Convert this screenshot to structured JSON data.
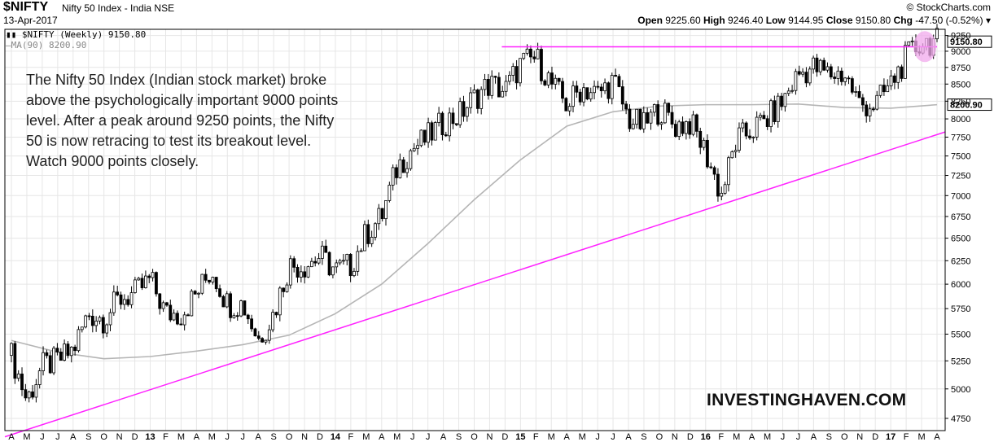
{
  "header": {
    "symbol": "$NIFTY",
    "name": "Nifty 50 Index - India",
    "exchange": "NSE",
    "date": "13-Apr-2017",
    "credit": "© StockCharts.com",
    "open_label": "Open",
    "open": "9225.60",
    "high_label": "High",
    "high": "9246.40",
    "low_label": "Low",
    "low": "9144.95",
    "close_label": "Close",
    "close": "9150.80",
    "chg_label": "Chg",
    "chg": "-47.50 (-0.52%)"
  },
  "legend": {
    "main": "$NIFTY (Weekly) 9150.80",
    "ma": "MA(90) 8200.90"
  },
  "annotation": "The Nifty 50 Index (Indian stock market) broke above the psychologically important 9000 points level. After a peak around 9250 points, the Nifty 50 is now retracing to test its breakout level. Watch 9000 points closely.",
  "watermark": "INVESTINGHAVEN.COM",
  "colors": {
    "price": "#000000",
    "ma": "#b5b5b5",
    "trendline": "#ff22ff",
    "grid": "#e6e6e6",
    "highlight": "#f2a9ec"
  },
  "chart_data": {
    "type": "line",
    "title": "$NIFTY Nifty 50 Index - India NSE",
    "price_style": "weekly candlesticks",
    "ylim": [
      4650,
      9350
    ],
    "y_ticks": [
      4750,
      5000,
      5250,
      5500,
      5750,
      6000,
      6250,
      6500,
      6750,
      7000,
      7250,
      7500,
      7750,
      8000,
      8250,
      8500,
      8750,
      9000,
      9250
    ],
    "y_scale": "log",
    "grid": true,
    "x_tick_labels": [
      "A",
      "M",
      "J",
      "J",
      "A",
      "S",
      "O",
      "N",
      "D",
      "13",
      "F",
      "M",
      "A",
      "M",
      "J",
      "J",
      "A",
      "S",
      "O",
      "N",
      "D",
      "14",
      "F",
      "M",
      "A",
      "M",
      "J",
      "J",
      "A",
      "S",
      "O",
      "N",
      "D",
      "15",
      "F",
      "M",
      "A",
      "M",
      "J",
      "J",
      "A",
      "S",
      "O",
      "N",
      "D",
      "16",
      "F",
      "M",
      "A",
      "M",
      "J",
      "J",
      "A",
      "S",
      "O",
      "N",
      "D",
      "17",
      "F",
      "M",
      "A"
    ],
    "x_range": [
      "2012-04",
      "2017-04"
    ],
    "series": [
      {
        "name": "$NIFTY (Weekly)",
        "x": [
          "2012-04",
          "2012-05",
          "2012-06",
          "2012-07",
          "2012-08",
          "2012-09",
          "2012-10",
          "2012-11",
          "2012-12",
          "2013-01",
          "2013-02",
          "2013-03",
          "2013-04",
          "2013-05",
          "2013-06",
          "2013-07",
          "2013-08",
          "2013-09",
          "2013-10",
          "2013-11",
          "2013-12",
          "2014-01",
          "2014-02",
          "2014-03",
          "2014-04",
          "2014-05",
          "2014-06",
          "2014-07",
          "2014-08",
          "2014-09",
          "2014-10",
          "2014-11",
          "2014-12",
          "2015-01",
          "2015-02",
          "2015-03",
          "2015-04",
          "2015-05",
          "2015-06",
          "2015-07",
          "2015-08",
          "2015-09",
          "2015-10",
          "2015-11",
          "2015-12",
          "2016-01",
          "2016-02",
          "2016-03",
          "2016-04",
          "2016-05",
          "2016-06",
          "2016-07",
          "2016-08",
          "2016-09",
          "2016-10",
          "2016-11",
          "2016-12",
          "2017-01",
          "2017-02",
          "2017-03",
          "2017-04"
        ],
        "values": [
          5300,
          4900,
          5200,
          5250,
          5350,
          5700,
          5650,
          5850,
          5900,
          6050,
          5700,
          5700,
          5900,
          6150,
          5800,
          5800,
          5450,
          5700,
          6200,
          6200,
          6300,
          6150,
          6200,
          6550,
          6750,
          7350,
          7600,
          7750,
          7950,
          8050,
          8300,
          8500,
          8400,
          8800,
          8900,
          8500,
          8200,
          8450,
          8350,
          8550,
          8000,
          7900,
          8150,
          7900,
          7950,
          7550,
          7000,
          7700,
          7850,
          8000,
          8250,
          8650,
          8750,
          8650,
          8650,
          8200,
          8200,
          8500,
          8900,
          9150,
          9150
        ]
      },
      {
        "name": "MA(90)",
        "x": [
          "2012-04",
          "2012-07",
          "2012-10",
          "2013-01",
          "2013-04",
          "2013-07",
          "2013-10",
          "2014-01",
          "2014-04",
          "2014-07",
          "2014-10",
          "2015-01",
          "2015-04",
          "2015-07",
          "2015-10",
          "2016-01",
          "2016-04",
          "2016-07",
          "2016-10",
          "2017-01",
          "2017-04"
        ],
        "values": [
          5440,
          5330,
          5270,
          5290,
          5340,
          5400,
          5490,
          5700,
          6000,
          6440,
          6950,
          7450,
          7900,
          8100,
          8180,
          8200,
          8200,
          8210,
          8160,
          8150,
          8200
        ]
      }
    ],
    "annotations": [
      {
        "kind": "horizontal_line",
        "value": 9070,
        "from": "2014-12",
        "to": "2017-04"
      },
      {
        "kind": "trendline",
        "from": {
          "x": "2012-04",
          "y": 4600
        },
        "to": {
          "x": "2017-04",
          "y": 7820
        }
      },
      {
        "kind": "highlight_circle",
        "at": {
          "x": "2017-03",
          "y": 9150
        }
      }
    ]
  }
}
